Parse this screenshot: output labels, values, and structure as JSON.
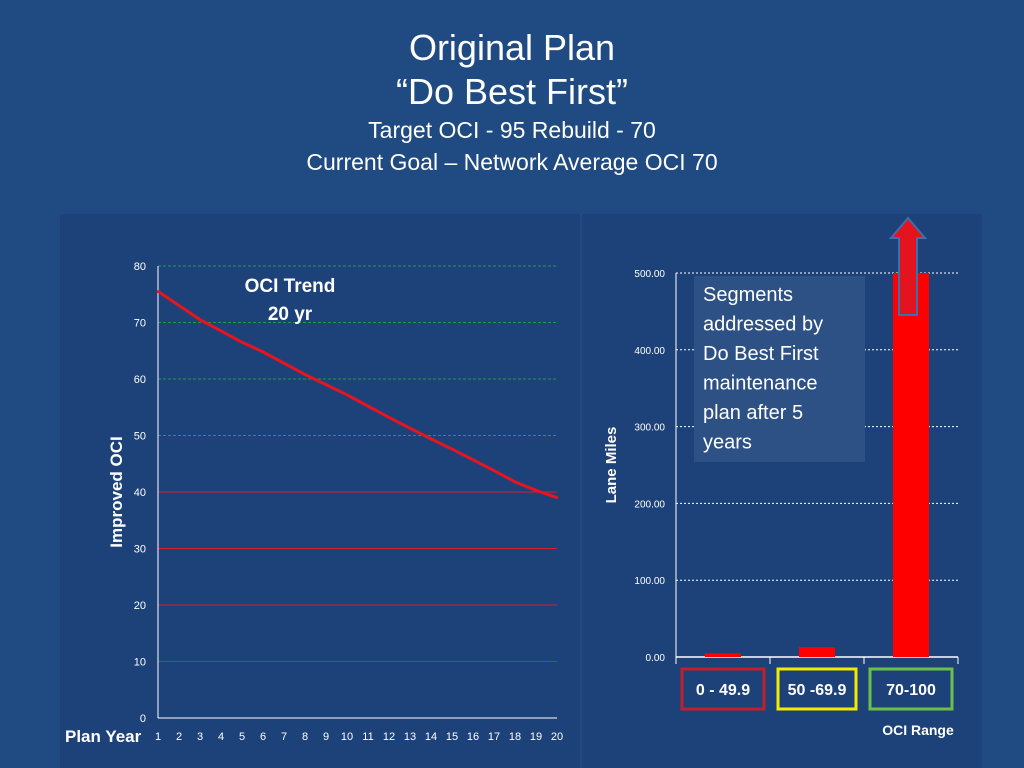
{
  "slide": {
    "title_line1": "Original Plan",
    "title_line2": "“Do Best First”",
    "title_line3": "Target OCI - 95  Rebuild - 70",
    "title_line4": "Current Goal – Network Average OCI 70"
  },
  "colors": {
    "background": "#1f4a82",
    "panel": "#1d4279",
    "trend_line": "#e8141e",
    "green_grid": "#1e9e3a",
    "red_grid": "#d81e2a",
    "bar": "#ff0000",
    "box_red": "#c0202c",
    "box_yellow": "#f2ea00",
    "box_green": "#6cc04a",
    "callout": "#2d5185",
    "arrow": "#e4141e"
  },
  "chart_data": [
    {
      "type": "line",
      "title": "OCI Trend\n20 yr",
      "title_line1": "OCI Trend",
      "title_line2": "20 yr",
      "xlabel": "Plan Year",
      "ylabel": "Improved OCI",
      "ylim": [
        0,
        80
      ],
      "yticks": [
        0,
        10,
        20,
        30,
        40,
        50,
        60,
        70,
        80
      ],
      "xticks": [
        1,
        2,
        3,
        4,
        5,
        6,
        7,
        8,
        9,
        10,
        11,
        12,
        13,
        14,
        15,
        16,
        17,
        18,
        19,
        20
      ],
      "x": [
        1,
        2,
        3,
        4,
        5,
        6,
        7,
        8,
        9,
        10,
        11,
        12,
        13,
        14,
        15,
        16,
        17,
        18,
        19,
        20
      ],
      "values": [
        75.5,
        73,
        70.5,
        68.5,
        66.5,
        64.8,
        62.8,
        60.8,
        59,
        57.2,
        55.2,
        53.2,
        51.3,
        49.4,
        47.6,
        45.7,
        43.8,
        41.8,
        40.3,
        39
      ],
      "grid": {
        "green_lines": [
          50,
          60,
          70,
          80
        ],
        "red_lines": [
          10,
          20,
          30,
          40
        ]
      }
    },
    {
      "type": "bar",
      "xlabel": "OCI Range",
      "ylabel": "Lane Miles",
      "ylim": [
        0,
        500
      ],
      "yticks": [
        "0.00",
        "100.00",
        "200.00",
        "300.00",
        "400.00",
        "500.00"
      ],
      "categories": [
        "0 - 49.9",
        "50 -69.9",
        "70-100"
      ],
      "values": [
        5,
        13,
        500
      ],
      "annotation": "Segments addressed by Do Best First maintenance plan after 5 years",
      "annotation_lines": [
        "Segments",
        "addressed by",
        "Do Best First",
        "maintenance",
        "plan after 5",
        "years"
      ]
    }
  ]
}
